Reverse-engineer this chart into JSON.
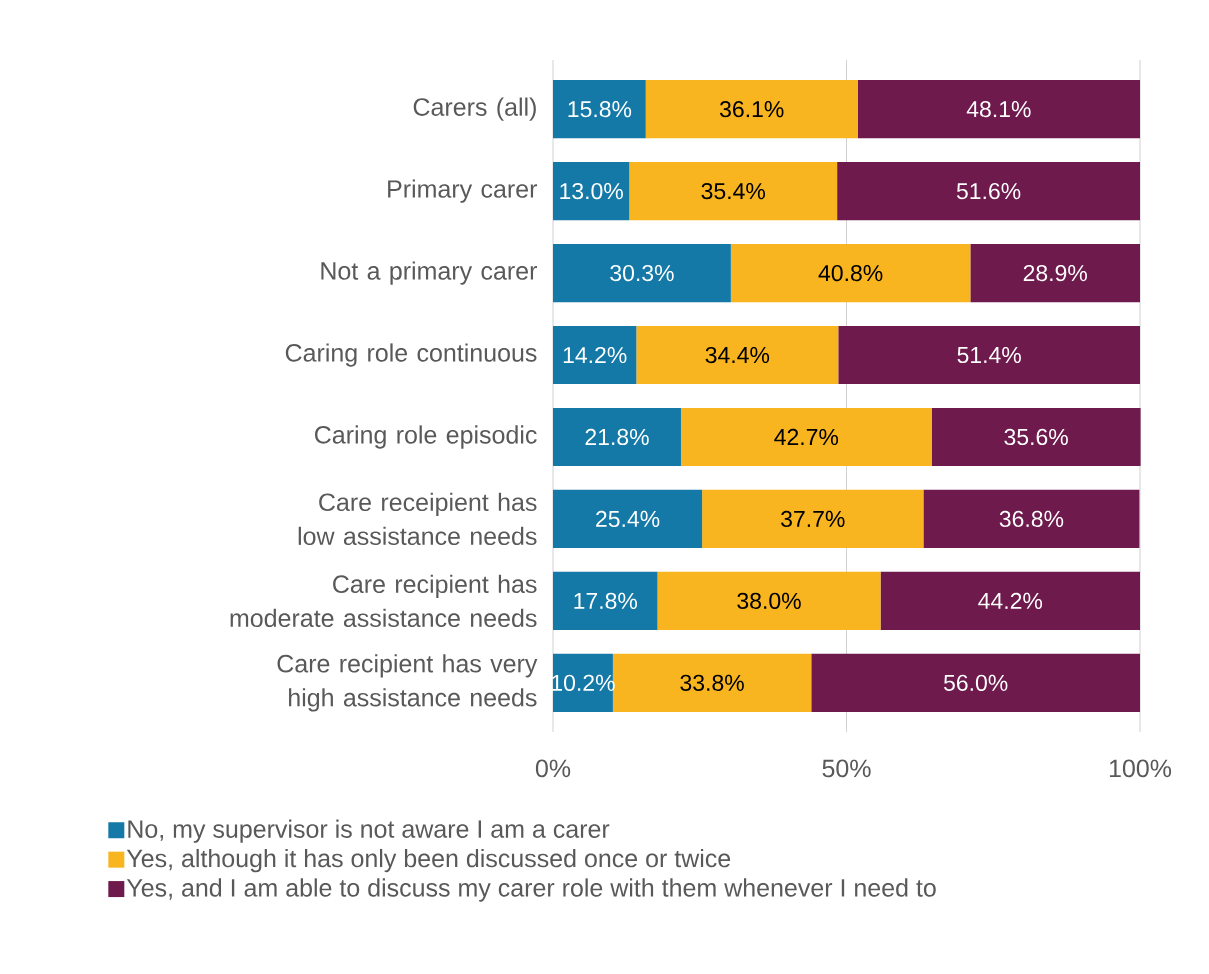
{
  "chart_data": {
    "type": "bar",
    "orientation": "horizontal",
    "stacked": true,
    "categories": [
      "Carers (all)",
      "Primary carer",
      "Not a primary carer",
      "Caring role continuous",
      "Caring role episodic",
      "Care receipient has low assistance needs",
      "Care recipient has moderate assistance needs",
      "Care recipient has very high assistance needs"
    ],
    "series": [
      {
        "name": "No, my supervisor is not aware I am a carer",
        "color": "#1479a7",
        "values": [
          15.8,
          13.0,
          30.3,
          14.2,
          21.8,
          25.4,
          17.8,
          10.2
        ],
        "value_labels": [
          "15.8%",
          "13.0%",
          "30.3%",
          "14.2%",
          "21.8%",
          "25.4%",
          "17.8%",
          "10.2%"
        ]
      },
      {
        "name": "Yes, although it has only been discussed once or twice",
        "color": "#f9b51f",
        "values": [
          36.1,
          35.4,
          40.8,
          34.4,
          42.7,
          37.7,
          38.0,
          33.8
        ],
        "value_labels": [
          "36.1%",
          "35.4%",
          "40.8%",
          "34.4%",
          "42.7%",
          "37.7%",
          "38.0%",
          "33.8%"
        ]
      },
      {
        "name": "Yes, and I am able to discuss my carer role with them whenever I need to",
        "color": "#6e1a4d",
        "values": [
          48.1,
          51.6,
          28.9,
          51.4,
          35.6,
          36.8,
          44.2,
          56.0
        ],
        "value_labels": [
          "48.1%",
          "51.6%",
          "28.9%",
          "51.4%",
          "35.6%",
          "36.8%",
          "44.2%",
          "56.0%"
        ]
      }
    ],
    "xlim": [
      0,
      100
    ],
    "xticks": [
      {
        "value": 0,
        "label": "0%"
      },
      {
        "value": 50,
        "label": "50%"
      },
      {
        "value": 100,
        "label": "100%"
      }
    ],
    "grid": "x",
    "legend": "bottom"
  }
}
